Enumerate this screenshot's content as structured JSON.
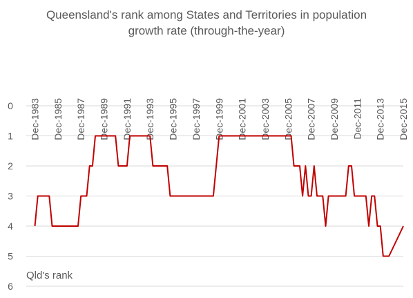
{
  "chart_data": {
    "type": "line",
    "title_line1": "Queensland's rank among States and Territories in population",
    "title_line2": "growth rate (through-the-year)",
    "ylabel": "Qld's rank",
    "ylim": [
      0,
      6
    ],
    "y_ticks": [
      "0",
      "1",
      "2",
      "3",
      "4",
      "5",
      "6"
    ],
    "y_inverted": true,
    "x_axis_position": "top",
    "grid": "horizontal",
    "x_tick_labels": [
      "Dec-1983",
      "Dec-1985",
      "Dec-1987",
      "Dec-1989",
      "Dec-1991",
      "Dec-1993",
      "Dec-1995",
      "Dec-1997",
      "Dec-1999",
      "Dec-2001",
      "Dec-2003",
      "Dec-2005",
      "Dec-2007",
      "Dec-2009",
      "Dec-2011",
      "Dec-2013",
      "Dec-2015"
    ],
    "series": [
      {
        "color": "#c00000",
        "points": [
          [
            "Dec-1983",
            4
          ],
          [
            "Mar-1984",
            3
          ],
          [
            "Mar-1985",
            3
          ],
          [
            "Jun-1985",
            4
          ],
          [
            "Sep-1987",
            4
          ],
          [
            "Dec-1987",
            3
          ],
          [
            "Jun-1988",
            3
          ],
          [
            "Sep-1988",
            2
          ],
          [
            "Dec-1988",
            2
          ],
          [
            "Mar-1989",
            1
          ],
          [
            "Dec-1990",
            1
          ],
          [
            "Mar-1991",
            2
          ],
          [
            "Dec-1991",
            2
          ],
          [
            "Mar-1992",
            1
          ],
          [
            "Dec-1993",
            1
          ],
          [
            "Mar-1994",
            2
          ],
          [
            "Jun-1995",
            2
          ],
          [
            "Sep-1995",
            3
          ],
          [
            "Jun-1999",
            3
          ],
          [
            "Sep-1999",
            2
          ],
          [
            "Dec-1999",
            1
          ],
          [
            "Mar-2006",
            1
          ],
          [
            "Jun-2006",
            2
          ],
          [
            "Dec-2006",
            2
          ],
          [
            "Mar-2007",
            3
          ],
          [
            "Jun-2007",
            2
          ],
          [
            "Sep-2007",
            3
          ],
          [
            "Dec-2007",
            3
          ],
          [
            "Mar-2008",
            2
          ],
          [
            "Jun-2008",
            3
          ],
          [
            "Sep-2008",
            3
          ],
          [
            "Dec-2008",
            3
          ],
          [
            "Mar-2009",
            4
          ],
          [
            "Jun-2009",
            3
          ],
          [
            "Dec-2010",
            3
          ],
          [
            "Mar-2011",
            2
          ],
          [
            "Jun-2011",
            2
          ],
          [
            "Sep-2011",
            3
          ],
          [
            "Sep-2012",
            3
          ],
          [
            "Dec-2012",
            4
          ],
          [
            "Mar-2013",
            3
          ],
          [
            "Jun-2013",
            3
          ],
          [
            "Sep-2013",
            4
          ],
          [
            "Dec-2013",
            4
          ],
          [
            "Mar-2014",
            5
          ],
          [
            "Sep-2014",
            5
          ],
          [
            "Dec-2015",
            4
          ]
        ]
      }
    ]
  }
}
